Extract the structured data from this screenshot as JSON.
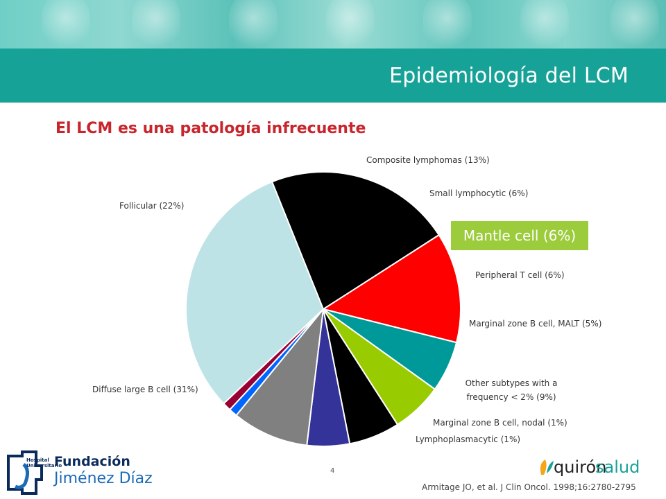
{
  "slide": {
    "title": "Epidemiología del LCM",
    "subtitle": "El LCM es una patología infrecuente",
    "page_number": "4",
    "citation": "Armitage JO, et al. J Clin Oncol. 1998;16:2780-2795",
    "highlight_label": "Mantle cell (6%)"
  },
  "logos": {
    "fjd": {
      "small_line1": "Hospital",
      "small_line2": "Universitario",
      "name1": "Fundación",
      "name2": "Jiménez Díaz"
    },
    "quironsalud": {
      "part1": "quirón",
      "part2": "salud"
    }
  },
  "colors": {
    "header_band": "#17a297",
    "subtitle": "#c8252c",
    "highlight": "#9ccc3c"
  },
  "chart_data": {
    "type": "pie",
    "slices": [
      {
        "label": "Composite lymphomas (13%)",
        "value": 13,
        "color": "#ff0000"
      },
      {
        "label": "Small lymphocytic (6%)",
        "value": 6,
        "color": "#009999"
      },
      {
        "label": "Mantle cell (6%)",
        "value": 6,
        "color": "#99cc00"
      },
      {
        "label": "Peripheral T cell (6%)",
        "value": 6,
        "color": "#000000"
      },
      {
        "label": "Marginal zone B cell, MALT (5%)",
        "value": 5,
        "color": "#333399"
      },
      {
        "label": "Other subtypes with a frequency < 2% (9%)",
        "value": 9,
        "color": "#808080"
      },
      {
        "label": "Marginal zone B cell, nodal (1%)",
        "value": 1,
        "color": "#0066ff"
      },
      {
        "label": "Lymphoplasmacytic (1%)",
        "value": 1,
        "color": "#990033"
      },
      {
        "label": "Diffuse large B cell (31%)",
        "value": 31,
        "color": "#bde3e6"
      },
      {
        "label": "Follicular (22%)",
        "value": 22,
        "color": "#000000"
      }
    ]
  }
}
